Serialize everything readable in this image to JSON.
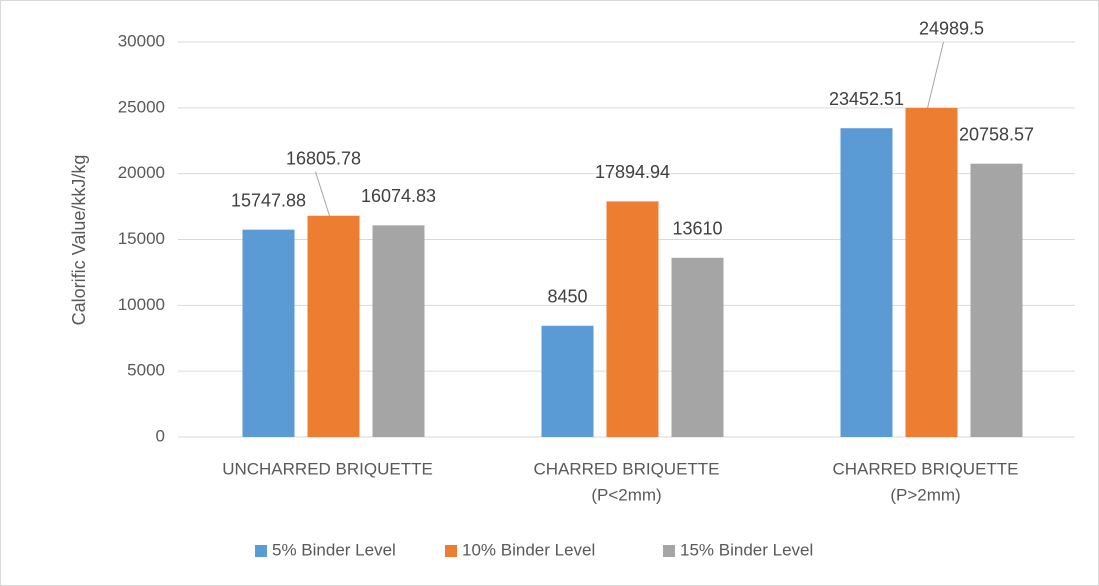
{
  "chart_data": {
    "type": "bar",
    "ylabel": "Calorific Value/kkJ/kg",
    "categories": [
      [
        "UNCHARRED BRIQUETTE"
      ],
      [
        "CHARRED BRIQUETTE",
        "(P<2mm)"
      ],
      [
        "CHARRED BRIQUETTE",
        "(P>2mm)"
      ]
    ],
    "series": [
      {
        "name": "5% Binder Level",
        "color": "#5b9bd5",
        "values": [
          15747.88,
          8450,
          23452.51
        ]
      },
      {
        "name": "10% Binder Level",
        "color": "#ed7d31",
        "values": [
          16805.78,
          17894.94,
          24989.5
        ]
      },
      {
        "name": "15% Binder Level",
        "color": "#a5a5a5",
        "values": [
          16074.83,
          13610,
          20758.57
        ]
      }
    ],
    "ylim": [
      0,
      30000
    ],
    "yticks": [
      0,
      5000,
      10000,
      15000,
      20000,
      25000,
      30000
    ],
    "grid": true,
    "legend": "bottom"
  }
}
